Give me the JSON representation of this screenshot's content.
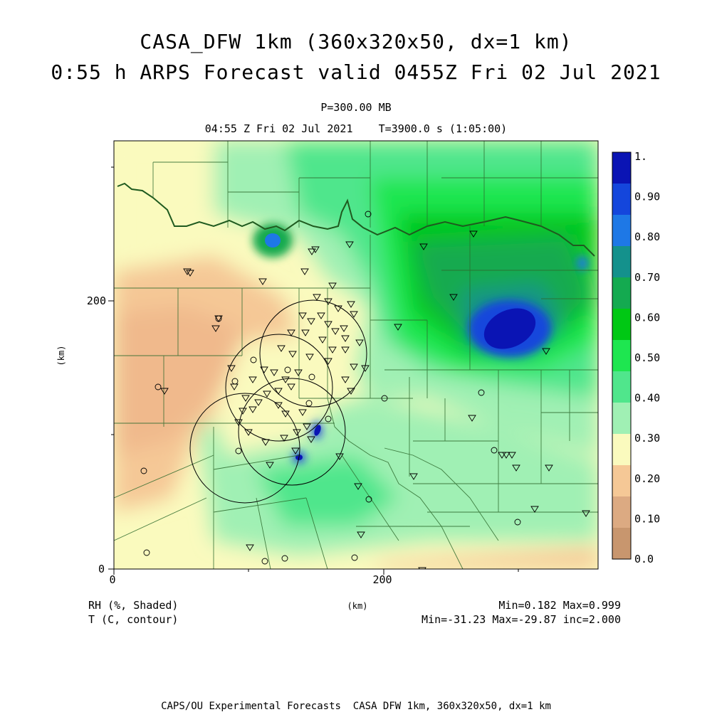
{
  "title": {
    "line1": "CASA_DFW 1km (360x320x50, dx=1 km)",
    "line2": "0:55 h ARPS Forecast valid 0455Z Fri 02 Jul 2021"
  },
  "subtitle": {
    "pressure": "P=300.00 MB",
    "time": "04:55 Z Fri 02 Jul 2021    T=3900.0 s (1:05:00)"
  },
  "axes": {
    "x_ticks": [
      "0",
      "200"
    ],
    "y_ticks": [
      "0",
      "200"
    ],
    "x_label": "(km)",
    "y_label": "(km)"
  },
  "colorbar": {
    "labels": [
      "1.",
      "0.90",
      "0.80",
      "0.70",
      "0.60",
      "0.50",
      "0.40",
      "0.30",
      "0.20",
      "0.10",
      "0.0"
    ],
    "colors": [
      "#0a14b4",
      "#1446dc",
      "#1e78e6",
      "#14918c",
      "#14aa50",
      "#00c814",
      "#1ee650",
      "#50e68c",
      "#a0f0b4",
      "#fafabe",
      "#f5c896",
      "#dcaa82",
      "#c8966e"
    ]
  },
  "legend": {
    "shaded": "RH (%, Shaded)",
    "contour": "T (C, contour)",
    "shaded_stats": "Min=0.182 Max=0.999",
    "contour_stats": "Min=-31.23 Max=-29.87 inc=2.000"
  },
  "footer": "CAPS/OU Experimental Forecasts  CASA DFW 1km, 360x320x50, dx=1 km"
}
